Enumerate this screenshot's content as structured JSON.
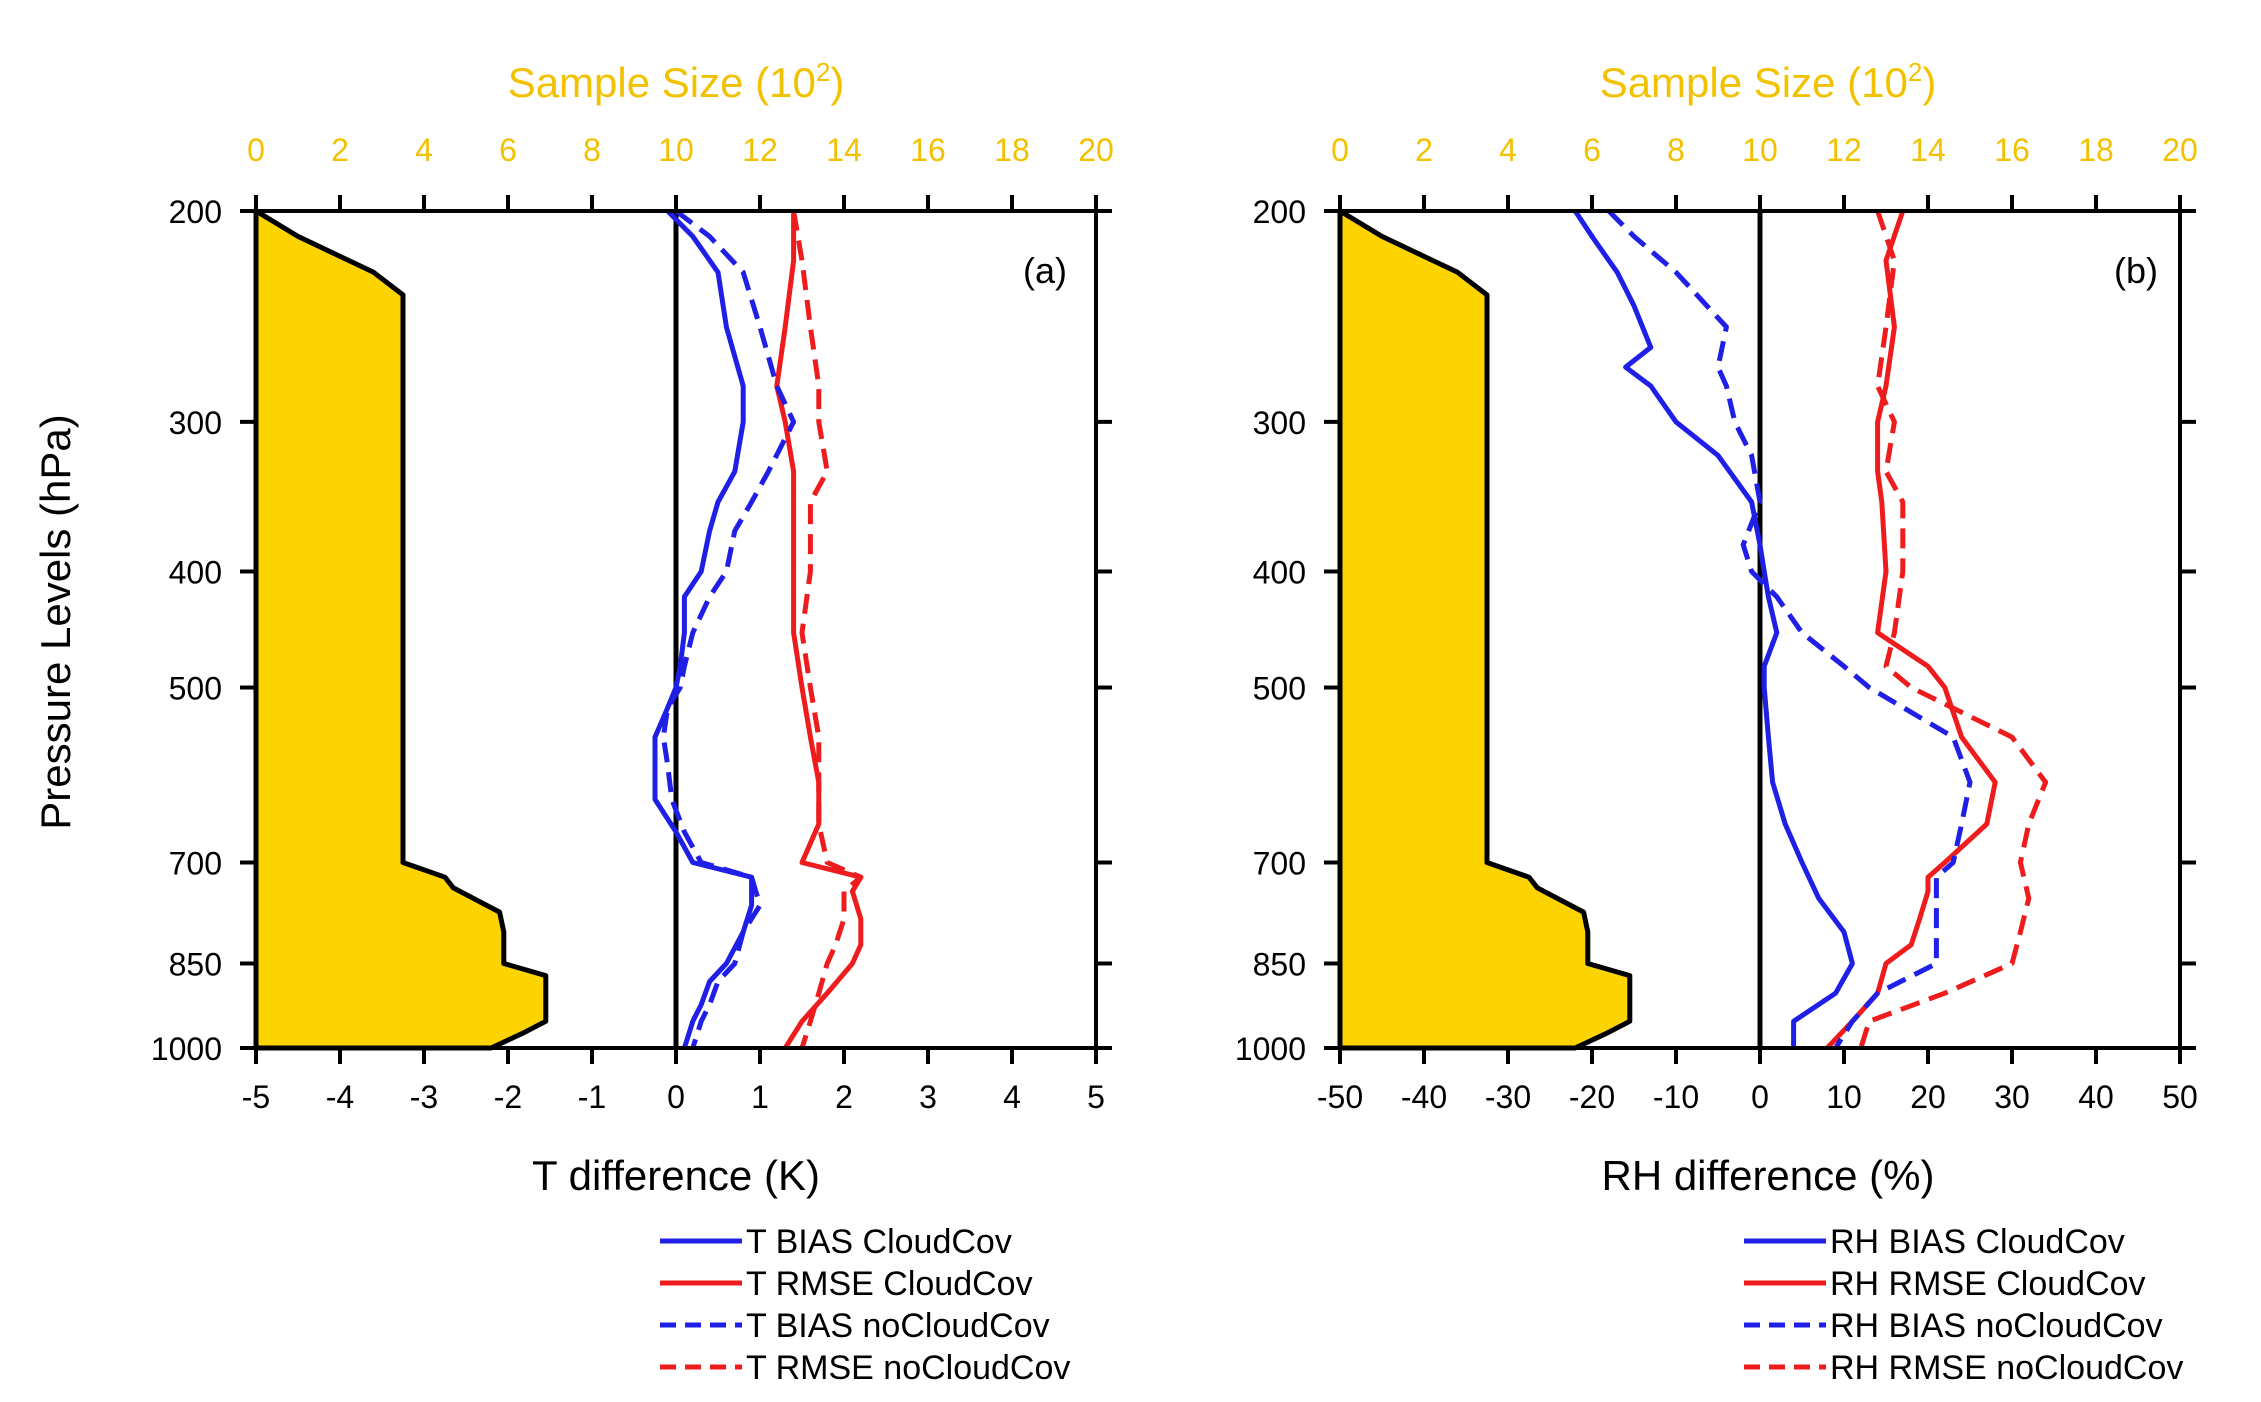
{
  "figure": {
    "y_axis_title": "Pressure Levels (hPa)",
    "top_axis_title_base": "Sample Size (10",
    "top_axis_title_exp": "2",
    "top_axis_title_end": ")"
  },
  "colors": {
    "bias_cloudcov": "#1f1fe6",
    "rmse_cloudcov": "#ee1c1c",
    "bias_nocloudcov": "#1f1fe6",
    "rmse_nocloudcov": "#ee1c1c",
    "sample_fill": "#fdd400",
    "top_axis": "#f2c200"
  },
  "chart_data": [
    {
      "type": "line",
      "panel_label": "(a)",
      "xlabel": "T difference (K)",
      "ylabel": "Pressure Levels (hPa)",
      "xlim": [
        -5,
        5
      ],
      "xticks": [
        -5,
        -4,
        -3,
        -2,
        -1,
        0,
        1,
        2,
        3,
        4,
        5
      ],
      "xtick_labels": [
        "-5",
        "-4",
        "-3",
        "-2",
        "-1",
        "0",
        "1",
        "2",
        "3",
        "4",
        "5"
      ],
      "ylim": [
        1000,
        200
      ],
      "yticks": [
        200,
        300,
        400,
        500,
        700,
        850,
        1000
      ],
      "ytick_labels": [
        "200",
        "300",
        "400",
        "500",
        "700",
        "850",
        "1000"
      ],
      "top_axis": {
        "title": "Sample Size (10^2)",
        "range": [
          0,
          20
        ],
        "ticks": [
          0,
          2,
          4,
          6,
          8,
          10,
          12,
          14,
          16,
          18,
          20
        ],
        "tick_labels": [
          "0",
          "2",
          "4",
          "6",
          "8",
          "10",
          "12",
          "14",
          "16",
          "18",
          "20"
        ]
      },
      "sample_size": {
        "p": [
          200,
          210,
          225,
          235,
          250,
          700,
          720,
          735,
          770,
          800,
          850,
          870,
          950,
          970,
          1000
        ],
        "value": [
          0,
          1.0,
          2.8,
          3.5,
          3.5,
          3.5,
          4.5,
          4.7,
          5.8,
          5.9,
          5.9,
          6.9,
          6.9,
          6.4,
          5.6
        ]
      },
      "series": [
        {
          "name": "T BIAS CloudCov",
          "style": "solid",
          "color": "#1f1fe6",
          "p": [
            200,
            210,
            225,
            250,
            280,
            300,
            330,
            350,
            370,
            400,
            420,
            450,
            480,
            500,
            520,
            550,
            580,
            620,
            660,
            700,
            720,
            740,
            760,
            800,
            850,
            880,
            920,
            950,
            1000
          ],
          "x": [
            -0.1,
            0.2,
            0.5,
            0.6,
            0.8,
            0.8,
            0.7,
            0.5,
            0.4,
            0.3,
            0.1,
            0.1,
            0.05,
            0.0,
            -0.1,
            -0.25,
            -0.25,
            -0.25,
            0.0,
            0.2,
            0.9,
            0.9,
            0.9,
            0.8,
            0.6,
            0.4,
            0.3,
            0.2,
            0.1
          ]
        },
        {
          "name": "T RMSE CloudCov",
          "style": "solid",
          "color": "#ee1c1c",
          "p": [
            200,
            220,
            250,
            280,
            300,
            330,
            350,
            400,
            450,
            500,
            550,
            600,
            650,
            700,
            720,
            740,
            780,
            820,
            850,
            900,
            950,
            1000
          ],
          "x": [
            1.4,
            1.4,
            1.3,
            1.2,
            1.3,
            1.4,
            1.4,
            1.4,
            1.4,
            1.5,
            1.6,
            1.7,
            1.7,
            1.5,
            2.2,
            2.1,
            2.2,
            2.2,
            2.1,
            1.8,
            1.5,
            1.3
          ]
        },
        {
          "name": "T BIAS noCloudCov",
          "style": "dashed",
          "color": "#1f1fe6",
          "p": [
            200,
            210,
            225,
            250,
            280,
            300,
            330,
            350,
            370,
            400,
            420,
            450,
            480,
            500,
            520,
            550,
            580,
            620,
            660,
            700,
            720,
            740,
            760,
            800,
            850,
            880,
            920,
            950,
            1000
          ],
          "x": [
            0.0,
            0.4,
            0.8,
            1.0,
            1.2,
            1.4,
            1.1,
            0.9,
            0.7,
            0.6,
            0.4,
            0.2,
            0.1,
            0.05,
            -0.1,
            -0.15,
            -0.1,
            -0.05,
            0.1,
            0.3,
            0.9,
            0.95,
            1.0,
            0.8,
            0.7,
            0.5,
            0.4,
            0.3,
            0.2
          ]
        },
        {
          "name": "T RMSE noCloudCov",
          "style": "dashed",
          "color": "#ee1c1c",
          "p": [
            200,
            220,
            250,
            280,
            300,
            330,
            350,
            400,
            450,
            500,
            550,
            600,
            650,
            700,
            720,
            740,
            780,
            820,
            850,
            900,
            950,
            1000
          ],
          "x": [
            1.4,
            1.5,
            1.6,
            1.7,
            1.7,
            1.8,
            1.6,
            1.6,
            1.5,
            1.6,
            1.7,
            1.7,
            1.7,
            1.8,
            2.2,
            2.0,
            2.0,
            1.9,
            1.8,
            1.7,
            1.6,
            1.5
          ]
        }
      ],
      "legend": [
        "T BIAS CloudCov",
        "T RMSE CloudCov",
        "T BIAS noCloudCov",
        "T RMSE noCloudCov"
      ],
      "legend_position": "bottom-right"
    },
    {
      "type": "line",
      "panel_label": "(b)",
      "xlabel": "RH difference (%)",
      "ylabel": "",
      "xlim": [
        -50,
        50
      ],
      "xticks": [
        -50,
        -40,
        -30,
        -20,
        -10,
        0,
        10,
        20,
        30,
        40,
        50
      ],
      "xtick_labels": [
        "-50",
        "-40",
        "-30",
        "-20",
        "-10",
        "0",
        "10",
        "20",
        "30",
        "40",
        "50"
      ],
      "ylim": [
        1000,
        200
      ],
      "yticks": [
        200,
        300,
        400,
        500,
        700,
        850,
        1000
      ],
      "ytick_labels": [
        "200",
        "300",
        "400",
        "500",
        "700",
        "850",
        "1000"
      ],
      "top_axis": {
        "title": "Sample Size (10^2)",
        "range": [
          0,
          20
        ],
        "ticks": [
          0,
          2,
          4,
          6,
          8,
          10,
          12,
          14,
          16,
          18,
          20
        ],
        "tick_labels": [
          "0",
          "2",
          "4",
          "6",
          "8",
          "10",
          "12",
          "14",
          "16",
          "18",
          "20"
        ]
      },
      "sample_size": {
        "p": [
          200,
          210,
          225,
          235,
          250,
          700,
          720,
          735,
          770,
          800,
          850,
          870,
          950,
          970,
          1000
        ],
        "value": [
          0,
          1.0,
          2.8,
          3.5,
          3.5,
          3.5,
          4.5,
          4.7,
          5.8,
          5.9,
          5.9,
          6.9,
          6.9,
          6.4,
          5.6
        ]
      },
      "series": [
        {
          "name": "RH BIAS CloudCov",
          "style": "solid",
          "color": "#1f1fe6",
          "p": [
            200,
            210,
            225,
            240,
            260,
            270,
            280,
            300,
            320,
            350,
            380,
            400,
            420,
            450,
            480,
            500,
            550,
            600,
            650,
            700,
            750,
            800,
            850,
            900,
            950,
            1000
          ],
          "x": [
            -22,
            -20,
            -17,
            -15,
            -13,
            -16,
            -13,
            -10,
            -5,
            -1,
            0,
            0.5,
            1,
            2,
            0.5,
            0.5,
            1,
            1.5,
            3,
            5,
            7,
            10,
            11,
            9,
            4,
            4
          ]
        },
        {
          "name": "RH RMSE CloudCov",
          "style": "solid",
          "color": "#ee1c1c",
          "p": [
            200,
            220,
            250,
            280,
            300,
            330,
            350,
            400,
            450,
            480,
            500,
            550,
            600,
            650,
            700,
            720,
            740,
            780,
            820,
            850,
            900,
            950,
            1000
          ],
          "x": [
            17,
            15,
            16,
            15,
            14,
            14,
            14.5,
            15,
            14,
            20,
            22,
            24,
            28,
            27,
            22,
            20,
            20,
            19,
            18,
            15,
            14,
            11,
            8
          ]
        },
        {
          "name": "RH BIAS noCloudCov",
          "style": "dashed",
          "color": "#1f1fe6",
          "p": [
            200,
            210,
            225,
            250,
            270,
            280,
            300,
            320,
            350,
            380,
            400,
            420,
            450,
            480,
            500,
            550,
            600,
            650,
            700,
            720,
            780,
            850,
            900,
            950,
            1000
          ],
          "x": [
            -18,
            -15,
            -10,
            -4,
            -5,
            -4,
            -3,
            -1,
            0,
            -2,
            -1,
            2,
            5,
            10,
            13,
            23,
            25,
            24,
            23,
            21,
            21,
            21,
            14,
            11,
            9
          ]
        },
        {
          "name": "RH RMSE noCloudCov",
          "style": "dashed",
          "color": "#ee1c1c",
          "p": [
            200,
            220,
            250,
            280,
            300,
            330,
            350,
            400,
            450,
            480,
            500,
            550,
            600,
            650,
            700,
            750,
            800,
            850,
            900,
            950,
            1000
          ],
          "x": [
            14,
            16,
            15,
            14,
            16,
            15,
            17,
            17,
            16,
            15,
            18,
            30,
            34,
            32,
            31,
            32,
            31,
            30,
            22,
            13,
            12
          ]
        }
      ],
      "legend": [
        "RH BIAS CloudCov",
        "RH RMSE CloudCov",
        "RH BIAS noCloudCov",
        "RH RMSE noCloudCov"
      ],
      "legend_position": "bottom-right"
    }
  ]
}
